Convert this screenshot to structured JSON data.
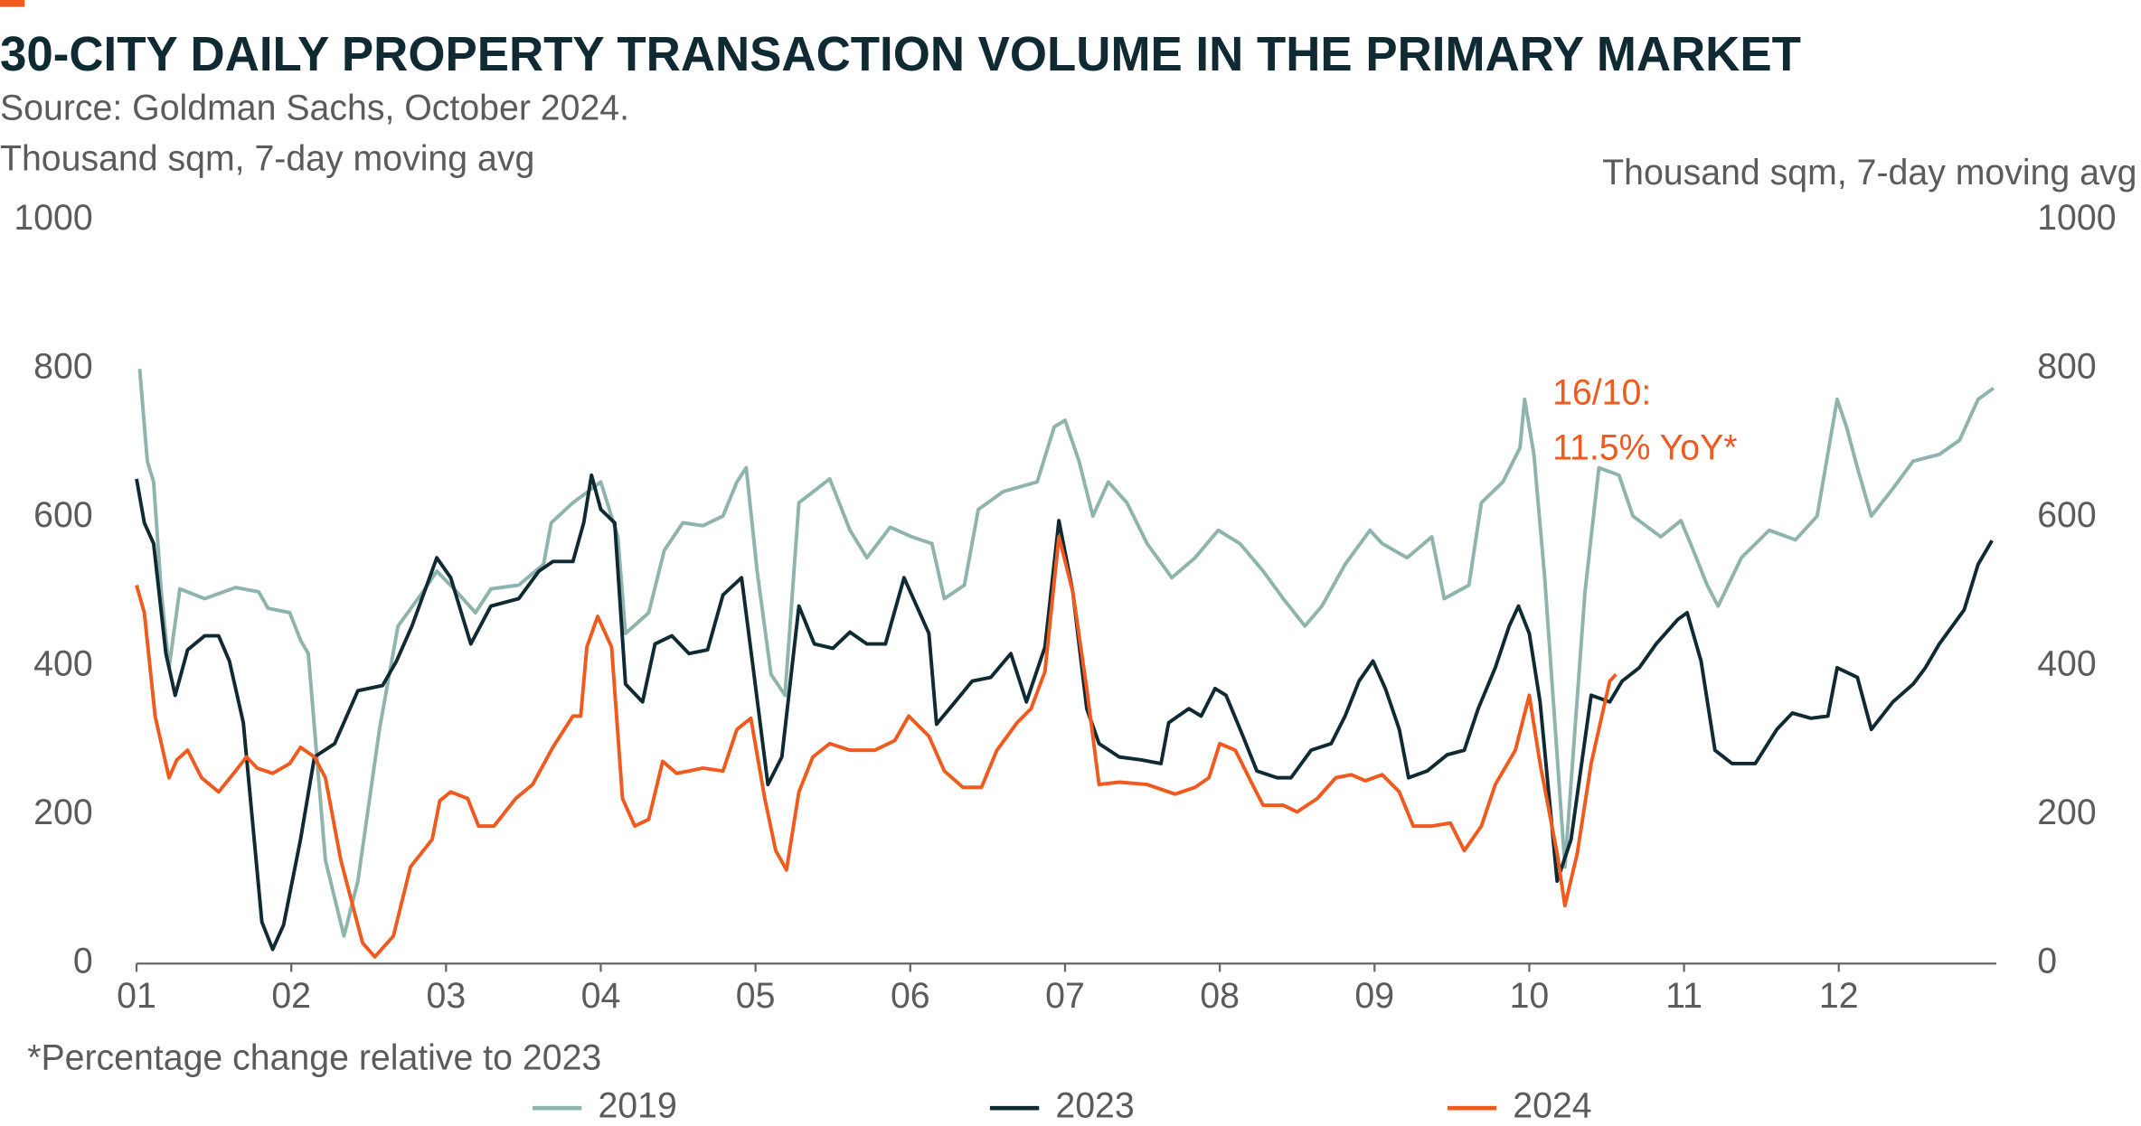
{
  "chart_data": {
    "type": "line",
    "title": "30-CITY DAILY PROPERTY TRANSACTION VOLUME IN THE PRIMARY MARKET",
    "subtitle": "Source: Goldman Sachs, October 2024.",
    "ylabel": "Thousand sqm, 7-day moving avg",
    "y2label": "Thousand sqm, 7-day moving avg",
    "annotations": [
      "16/10:",
      "11.5% YoY*"
    ],
    "footnote": "*Percentage change relative to 2023",
    "xlim": [
      1,
      13
    ],
    "xticks": [
      {
        "value": 1,
        "label": "01"
      },
      {
        "value": 2,
        "label": "02"
      },
      {
        "value": 3,
        "label": "03"
      },
      {
        "value": 4,
        "label": "04"
      },
      {
        "value": 5,
        "label": "05"
      },
      {
        "value": 6,
        "label": "06"
      },
      {
        "value": 7,
        "label": "07"
      },
      {
        "value": 8,
        "label": "08"
      },
      {
        "value": 9,
        "label": "09"
      },
      {
        "value": 10,
        "label": "10"
      },
      {
        "value": 11,
        "label": "11"
      },
      {
        "value": 12,
        "label": "12"
      }
    ],
    "ylim": [
      0,
      1000
    ],
    "yticks": [
      0,
      200,
      400,
      600,
      800,
      1000
    ],
    "y2lim": [
      0,
      1000
    ],
    "y2ticks": [
      0,
      200,
      400,
      600,
      800,
      1000
    ],
    "grid": false,
    "legend": "bottom",
    "series": [
      {
        "name": "2019",
        "color": "#8fb3ad",
        "x": [
          1.02,
          1.07,
          1.11,
          1.16,
          1.21,
          1.28,
          1.44,
          1.64,
          1.79,
          1.85,
          1.99,
          2.06,
          2.11,
          2.22,
          2.34,
          2.43,
          2.57,
          2.69,
          2.85,
          2.94,
          3.07,
          3.19,
          3.29,
          3.47,
          3.63,
          3.68,
          3.82,
          4.0,
          4.11,
          4.16,
          4.31,
          4.41,
          4.53,
          4.66,
          4.79,
          4.88,
          4.94,
          5.01,
          5.1,
          5.19,
          5.28,
          5.48,
          5.61,
          5.72,
          5.87,
          6.01,
          6.14,
          6.22,
          6.35,
          6.44,
          6.6,
          6.82,
          6.93,
          7.0,
          7.09,
          7.18,
          7.28,
          7.4,
          7.53,
          7.69,
          7.84,
          7.99,
          8.13,
          8.28,
          8.41,
          8.55,
          8.66,
          8.81,
          8.97,
          9.05,
          9.21,
          9.37,
          9.45,
          9.61,
          9.69,
          9.83,
          9.94,
          9.97,
          10.03,
          10.1,
          10.23,
          10.36,
          10.45,
          10.58,
          10.67,
          10.85,
          10.98,
          11.06,
          11.15,
          11.22,
          11.37,
          11.55,
          11.72,
          11.86,
          11.99,
          12.05,
          12.12,
          12.21,
          12.35,
          12.48,
          12.65,
          12.78,
          12.9,
          13.0
        ],
        "values": [
          800,
          676,
          648,
          500,
          398,
          504,
          491,
          506,
          500,
          478,
          472,
          435,
          417,
          139,
          37,
          111,
          315,
          454,
          500,
          528,
          500,
          472,
          504,
          509,
          537,
          593,
          620,
          648,
          574,
          444,
          472,
          556,
          593,
          589,
          602,
          648,
          667,
          528,
          389,
          361,
          620,
          652,
          583,
          546,
          587,
          574,
          565,
          491,
          509,
          611,
          635,
          648,
          722,
          731,
          676,
          602,
          648,
          620,
          565,
          519,
          546,
          583,
          565,
          528,
          491,
          454,
          481,
          537,
          583,
          565,
          546,
          574,
          491,
          509,
          620,
          648,
          694,
          759,
          685,
          519,
          130,
          500,
          667,
          657,
          602,
          574,
          596,
          556,
          509,
          481,
          546,
          583,
          570,
          602,
          759,
          722,
          667,
          602,
          639,
          676,
          685,
          704,
          759,
          774
        ]
      },
      {
        "name": "2023",
        "color": "#0f2a33",
        "x": [
          1.0,
          1.05,
          1.11,
          1.19,
          1.25,
          1.33,
          1.44,
          1.53,
          1.6,
          1.69,
          1.81,
          1.88,
          1.95,
          2.06,
          2.15,
          2.28,
          2.43,
          2.59,
          2.68,
          2.78,
          2.94,
          3.03,
          3.16,
          3.29,
          3.47,
          3.6,
          3.69,
          3.82,
          3.89,
          3.94,
          4.0,
          4.09,
          4.16,
          4.27,
          4.35,
          4.46,
          4.57,
          4.69,
          4.79,
          4.91,
          4.99,
          5.08,
          5.17,
          5.28,
          5.38,
          5.5,
          5.61,
          5.72,
          5.84,
          5.96,
          6.12,
          6.17,
          6.29,
          6.4,
          6.52,
          6.65,
          6.75,
          6.87,
          6.96,
          7.05,
          7.14,
          7.22,
          7.35,
          7.49,
          7.62,
          7.67,
          7.8,
          7.88,
          7.97,
          8.04,
          8.15,
          8.24,
          8.37,
          8.46,
          8.59,
          8.72,
          8.81,
          8.9,
          8.99,
          9.07,
          9.16,
          9.22,
          9.34,
          9.47,
          9.58,
          9.67,
          9.78,
          9.87,
          9.93,
          10.0,
          10.07,
          10.18,
          10.27,
          10.4,
          10.52,
          10.6,
          10.71,
          10.82,
          10.96,
          11.02,
          11.11,
          11.2,
          11.31,
          11.46,
          11.6,
          11.7,
          11.82,
          11.93,
          11.99,
          12.12,
          12.21,
          12.35,
          12.48,
          12.56,
          12.65,
          12.81,
          12.9,
          12.99
        ],
        "values": [
          652,
          593,
          565,
          417,
          361,
          422,
          441,
          441,
          407,
          324,
          56,
          19,
          52,
          167,
          278,
          296,
          367,
          374,
          407,
          454,
          546,
          519,
          430,
          481,
          491,
          528,
          541,
          541,
          593,
          657,
          611,
          593,
          376,
          352,
          430,
          441,
          417,
          422,
          496,
          519,
          389,
          241,
          278,
          481,
          430,
          424,
          446,
          430,
          430,
          519,
          444,
          322,
          352,
          380,
          385,
          417,
          352,
          426,
          596,
          500,
          343,
          296,
          278,
          274,
          269,
          324,
          343,
          333,
          370,
          361,
          306,
          259,
          250,
          250,
          287,
          296,
          333,
          380,
          407,
          370,
          315,
          250,
          259,
          281,
          287,
          343,
          398,
          454,
          481,
          444,
          352,
          111,
          167,
          361,
          352,
          380,
          398,
          430,
          463,
          472,
          407,
          287,
          269,
          269,
          315,
          337,
          330,
          333,
          398,
          385,
          315,
          352,
          376,
          398,
          430,
          476,
          537,
          569
        ]
      },
      {
        "name": "2024",
        "color": "#f05a1e",
        "x": [
          1.0,
          1.05,
          1.12,
          1.21,
          1.26,
          1.33,
          1.42,
          1.53,
          1.64,
          1.71,
          1.78,
          1.88,
          1.99,
          2.06,
          2.15,
          2.22,
          2.32,
          2.46,
          2.54,
          2.66,
          2.77,
          2.91,
          2.96,
          3.03,
          3.14,
          3.21,
          3.31,
          3.45,
          3.56,
          3.69,
          3.82,
          3.87,
          3.91,
          3.98,
          4.07,
          4.14,
          4.22,
          4.31,
          4.4,
          4.49,
          4.57,
          4.66,
          4.79,
          4.88,
          4.97,
          5.06,
          5.13,
          5.2,
          5.28,
          5.37,
          5.48,
          5.61,
          5.77,
          5.9,
          5.99,
          6.12,
          6.22,
          6.34,
          6.46,
          6.56,
          6.69,
          6.78,
          6.87,
          6.96,
          7.05,
          7.14,
          7.22,
          7.35,
          7.53,
          7.71,
          7.84,
          7.93,
          8.0,
          8.1,
          8.22,
          8.28,
          8.41,
          8.5,
          8.63,
          8.75,
          8.85,
          8.94,
          9.05,
          9.16,
          9.25,
          9.37,
          9.49,
          9.58,
          9.69,
          9.78,
          9.91,
          10.0,
          10.07,
          10.18,
          10.23,
          10.31,
          10.4,
          10.52,
          10.56
        ],
        "values": [
          509,
          472,
          333,
          250,
          274,
          287,
          250,
          231,
          259,
          278,
          263,
          256,
          269,
          291,
          278,
          250,
          139,
          28,
          9,
          37,
          130,
          167,
          219,
          231,
          222,
          185,
          185,
          222,
          241,
          291,
          333,
          333,
          426,
          467,
          426,
          222,
          185,
          194,
          272,
          256,
          259,
          263,
          259,
          315,
          330,
          222,
          152,
          126,
          231,
          278,
          296,
          287,
          287,
          300,
          333,
          306,
          259,
          237,
          237,
          287,
          324,
          343,
          393,
          574,
          500,
          370,
          241,
          244,
          241,
          228,
          237,
          250,
          296,
          287,
          237,
          213,
          213,
          204,
          222,
          250,
          254,
          246,
          254,
          231,
          185,
          185,
          189,
          152,
          185,
          241,
          287,
          361,
          269,
          148,
          78,
          148,
          269,
          380,
          389
        ]
      }
    ]
  }
}
